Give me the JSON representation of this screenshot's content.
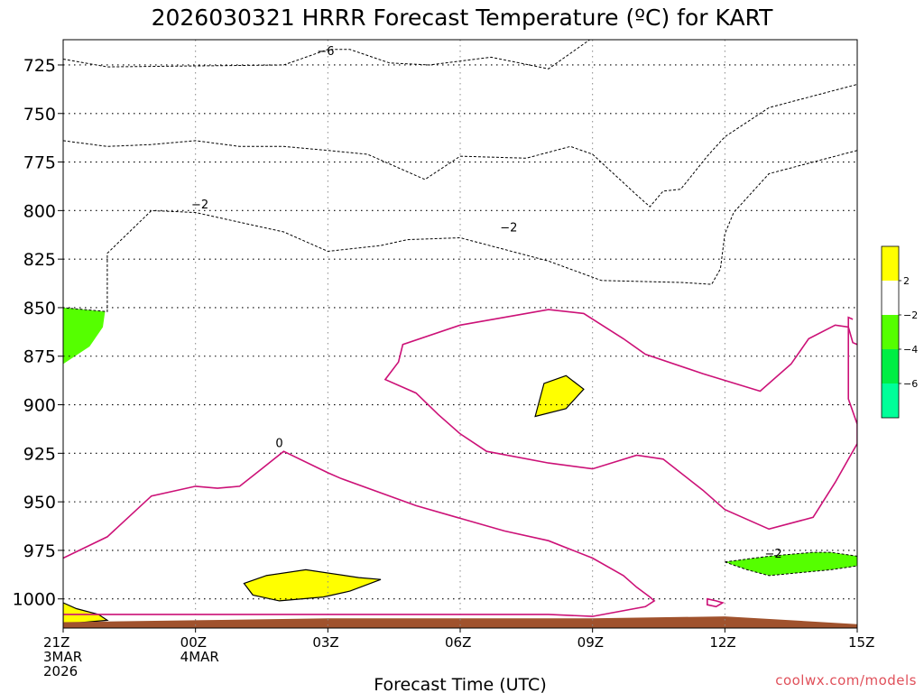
{
  "chart_data": {
    "type": "contour",
    "title": "2026030321 HRRR Forecast Temperature (ºC) for KART",
    "xlabel": "Forecast Time (UTC)",
    "ylabel": "",
    "credit": "coolwx.com/models",
    "x_range_hours": [
      0,
      18
    ],
    "y_range_hpa": [
      1015,
      712
    ],
    "x_ticks": [
      {
        "hour": 0,
        "lines": [
          "21Z",
          "3MAR",
          "2026"
        ]
      },
      {
        "hour": 3,
        "lines": [
          "00Z",
          "4MAR"
        ]
      },
      {
        "hour": 6,
        "lines": [
          "03Z"
        ]
      },
      {
        "hour": 9,
        "lines": [
          "06Z"
        ]
      },
      {
        "hour": 12,
        "lines": [
          "09Z"
        ]
      },
      {
        "hour": 15,
        "lines": [
          "12Z"
        ]
      },
      {
        "hour": 18,
        "lines": [
          "15Z"
        ]
      }
    ],
    "y_ticks": [
      725,
      750,
      775,
      800,
      825,
      850,
      875,
      900,
      925,
      950,
      975,
      1000
    ],
    "grid": true,
    "colors": {
      "warm_0_2": "#ffff00",
      "minus2_0": "#ffffff",
      "minus4_minus2": "#55ff00",
      "minus6_minus4": "#00ee44",
      "below_minus6": "#00ff99",
      "ground": "#a0522d",
      "zero_line": "#cc1177",
      "contour_line": "#000000"
    },
    "legend": {
      "position": "right",
      "ticks": [
        "2",
        "−2",
        "−4",
        "−6"
      ],
      "colors": [
        "#ffff00",
        "#ffffff",
        "#55ff00",
        "#00ee44",
        "#00ff99"
      ]
    },
    "contour_labels": [
      {
        "text": "−6",
        "hour": 5.95,
        "hpa": 718
      },
      {
        "text": "−2",
        "hour": 3.1,
        "hpa": 797
      },
      {
        "text": "−2",
        "hour": 10.1,
        "hpa": 809
      },
      {
        "text": "0",
        "hour": 4.9,
        "hpa": 920
      },
      {
        "text": "−2",
        "hour": 16.1,
        "hpa": 977
      }
    ],
    "regions": {
      "minus6_area": [
        [
          0,
          712
        ],
        [
          0,
          722
        ],
        [
          1,
          726
        ],
        [
          5,
          725
        ],
        [
          5.5,
          721
        ],
        [
          6,
          717
        ],
        [
          6.5,
          717
        ],
        [
          7.4,
          724
        ],
        [
          8.3,
          725
        ],
        [
          9.7,
          721
        ],
        [
          11,
          727
        ],
        [
          12,
          711
        ],
        [
          18,
          711
        ],
        [
          18,
          712
        ]
      ],
      "minus4_area": [
        [
          0,
          712
        ],
        [
          18,
          712
        ],
        [
          18,
          735
        ],
        [
          16,
          747
        ],
        [
          15,
          762
        ],
        [
          14.6,
          772
        ],
        [
          14,
          789
        ],
        [
          13.6,
          790
        ],
        [
          13.3,
          798
        ],
        [
          13,
          792
        ],
        [
          12,
          771
        ],
        [
          11.5,
          767
        ],
        [
          10.5,
          773
        ],
        [
          9,
          772
        ],
        [
          8.2,
          784
        ],
        [
          7,
          772
        ],
        [
          6.9,
          771
        ],
        [
          6,
          769
        ],
        [
          5,
          767
        ],
        [
          4,
          767
        ],
        [
          3,
          764
        ],
        [
          2,
          766
        ],
        [
          1,
          767
        ],
        [
          0,
          764
        ]
      ],
      "minus2_area": [
        [
          0,
          712
        ],
        [
          18,
          712
        ],
        [
          18,
          769
        ],
        [
          17,
          775
        ],
        [
          16,
          781
        ],
        [
          15.2,
          801
        ],
        [
          15,
          812
        ],
        [
          14.9,
          830
        ],
        [
          14.7,
          838
        ],
        [
          14,
          837
        ],
        [
          12.2,
          836
        ],
        [
          11,
          826
        ],
        [
          9,
          814
        ],
        [
          7.8,
          815
        ],
        [
          7.2,
          818
        ],
        [
          6,
          821
        ],
        [
          5,
          811
        ],
        [
          4,
          806
        ],
        [
          3,
          801
        ],
        [
          2,
          800
        ],
        [
          1,
          822
        ],
        [
          1,
          829
        ],
        [
          1,
          852
        ],
        [
          0,
          850
        ],
        [
          0,
          881
        ]
      ],
      "minus2_low_area": [
        [
          0,
          850
        ],
        [
          0,
          879
        ],
        [
          0.6,
          870
        ],
        [
          0.9,
          860
        ],
        [
          0.95,
          852
        ]
      ],
      "yellow_low_right": [
        [
          0,
          1002
        ],
        [
          0,
          1013
        ],
        [
          1,
          1011
        ],
        [
          0.8,
          1008
        ],
        [
          0.3,
          1005
        ]
      ],
      "yellow_mid": [
        [
          10.7,
          906
        ],
        [
          11.4,
          902
        ],
        [
          11.8,
          892
        ],
        [
          11.4,
          885
        ],
        [
          10.9,
          889
        ]
      ],
      "yellow_near_surface": [
        [
          4.6,
          988
        ],
        [
          5.5,
          985
        ],
        [
          6.7,
          989
        ],
        [
          7.2,
          990
        ],
        [
          6.5,
          996
        ],
        [
          5.9,
          999
        ],
        [
          4.9,
          1001
        ],
        [
          4.3,
          998
        ],
        [
          4.1,
          992
        ]
      ],
      "green_low_right": [
        [
          15,
          981
        ],
        [
          16,
          978
        ],
        [
          17,
          976
        ],
        [
          17.4,
          976
        ],
        [
          17.7,
          977
        ],
        [
          18,
          978
        ],
        [
          18,
          983
        ],
        [
          17.4,
          985
        ],
        [
          16,
          988
        ],
        [
          15.5,
          985
        ]
      ],
      "ground": [
        [
          0,
          1012
        ],
        [
          3,
          1011
        ],
        [
          6,
          1010
        ],
        [
          9,
          1010
        ],
        [
          12,
          1010
        ],
        [
          15,
          1009
        ],
        [
          18,
          1013
        ],
        [
          18,
          1025
        ],
        [
          0,
          1025
        ]
      ]
    },
    "zero_line_primary": [
      [
        0,
        979
      ],
      [
        1,
        968
      ],
      [
        2,
        947
      ],
      [
        3,
        942
      ],
      [
        3.5,
        943
      ],
      [
        4,
        942
      ],
      [
        4.5,
        933
      ],
      [
        5,
        924
      ],
      [
        6,
        935
      ],
      [
        6.3,
        938
      ],
      [
        8,
        952
      ],
      [
        10,
        965
      ],
      [
        11,
        970
      ],
      [
        12,
        979
      ],
      [
        12.7,
        988
      ],
      [
        13,
        994
      ],
      [
        13.3,
        999
      ],
      [
        13.4,
        1001
      ],
      [
        13.2,
        1004
      ],
      [
        12,
        1009
      ],
      [
        11,
        1008
      ],
      [
        0,
        1008
      ]
    ],
    "zero_line_upper": [
      [
        7.7,
        869
      ],
      [
        9,
        859
      ],
      [
        10,
        855
      ],
      [
        11,
        851
      ],
      [
        11.8,
        853
      ],
      [
        12.7,
        866
      ],
      [
        13.2,
        874
      ],
      [
        14.5,
        884
      ],
      [
        15.8,
        893
      ],
      [
        16.5,
        879
      ],
      [
        16.9,
        866
      ],
      [
        17.5,
        859
      ],
      [
        17.8,
        860
      ],
      [
        17.8,
        875
      ],
      [
        17.8,
        897
      ],
      [
        18,
        910
      ],
      [
        18,
        920
      ],
      [
        17.5,
        940
      ],
      [
        17,
        958
      ],
      [
        16,
        964
      ],
      [
        15,
        954
      ],
      [
        14.5,
        944
      ],
      [
        13.6,
        928
      ],
      [
        13,
        926
      ],
      [
        12,
        933
      ],
      [
        11,
        930
      ],
      [
        9.6,
        924
      ],
      [
        9,
        915
      ],
      [
        8.5,
        905
      ],
      [
        8,
        894
      ],
      [
        7.3,
        887
      ],
      [
        7.6,
        878
      ]
    ],
    "zero_line_right": [
      [
        17.9,
        856
      ],
      [
        17.8,
        855
      ],
      [
        17.8,
        860
      ],
      [
        17.9,
        868
      ],
      [
        18,
        869
      ]
    ],
    "zero_blob_small": [
      [
        14.6,
        1000
      ],
      [
        14.8,
        1001
      ],
      [
        14.95,
        1002
      ],
      [
        14.8,
        1004
      ],
      [
        14.6,
        1003
      ]
    ]
  }
}
